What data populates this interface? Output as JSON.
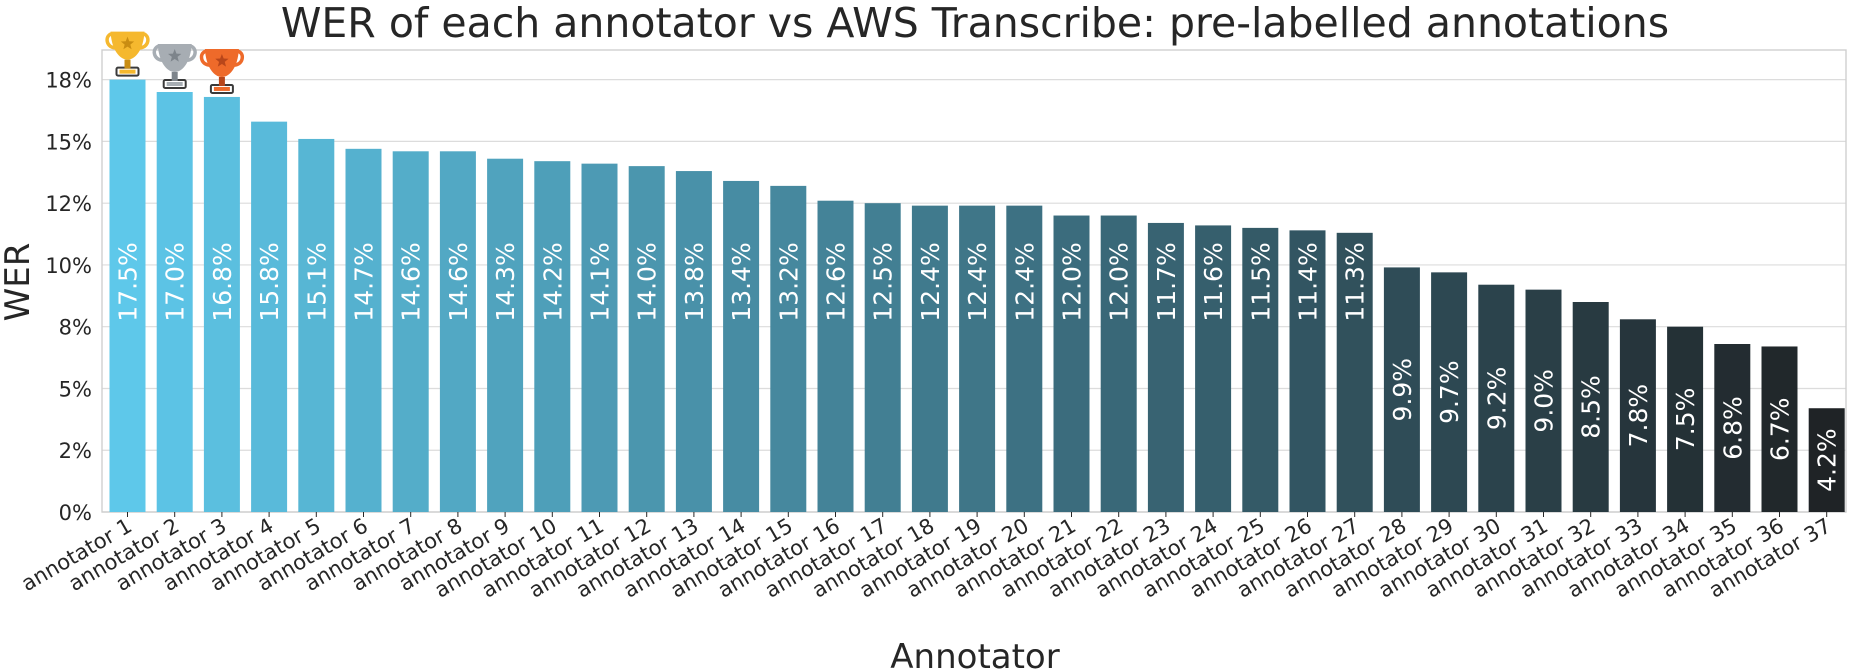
{
  "chart_data": {
    "type": "bar",
    "title": "WER of each annotator vs AWS Transcribe: pre-labelled annotations",
    "xlabel": "Annotator",
    "ylabel": "WER",
    "ylim": [
      0,
      18.7
    ],
    "yticks": [
      {
        "value": 0,
        "label": "0%"
      },
      {
        "value": 2.5,
        "label": "2%"
      },
      {
        "value": 5,
        "label": "5%"
      },
      {
        "value": 7.5,
        "label": "8%"
      },
      {
        "value": 10,
        "label": "10%"
      },
      {
        "value": 12.5,
        "label": "12%"
      },
      {
        "value": 15,
        "label": "15%"
      },
      {
        "value": 17.5,
        "label": "18%"
      }
    ],
    "grid": true,
    "categories": [
      "annotator 1",
      "annotator 2",
      "annotator 3",
      "annotator 4",
      "annotator 5",
      "annotator 6",
      "annotator 7",
      "annotator 8",
      "annotator 9",
      "annotator 10",
      "annotator 11",
      "annotator 12",
      "annotator 13",
      "annotator 14",
      "annotator 15",
      "annotator 16",
      "annotator 17",
      "annotator 18",
      "annotator 19",
      "annotator 20",
      "annotator 21",
      "annotator 22",
      "annotator 23",
      "annotator 24",
      "annotator 25",
      "annotator 26",
      "annotator 27",
      "annotator 28",
      "annotator 29",
      "annotator 30",
      "annotator 31",
      "annotator 32",
      "annotator 33",
      "annotator 34",
      "annotator 35",
      "annotator 36",
      "annotator 37"
    ],
    "values": [
      17.5,
      17.0,
      16.8,
      15.8,
      15.1,
      14.7,
      14.6,
      14.6,
      14.3,
      14.2,
      14.1,
      14.0,
      13.8,
      13.4,
      13.2,
      12.6,
      12.5,
      12.4,
      12.4,
      12.4,
      12.0,
      12.0,
      11.7,
      11.6,
      11.5,
      11.4,
      11.3,
      9.9,
      9.7,
      9.2,
      9.0,
      8.5,
      7.8,
      7.5,
      6.8,
      6.7,
      4.2
    ],
    "data_labels": [
      "17.5%",
      "17.0%",
      "16.8%",
      "15.8%",
      "15.1%",
      "14.7%",
      "14.6%",
      "14.6%",
      "14.3%",
      "14.2%",
      "14.1%",
      "14.0%",
      "13.8%",
      "13.4%",
      "13.2%",
      "12.6%",
      "12.5%",
      "12.4%",
      "12.4%",
      "12.4%",
      "12.0%",
      "12.0%",
      "11.7%",
      "11.6%",
      "11.5%",
      "11.4%",
      "11.3%",
      "9.9%",
      "9.7%",
      "9.2%",
      "9.0%",
      "8.5%",
      "7.8%",
      "7.5%",
      "6.8%",
      "6.7%",
      "4.2%"
    ],
    "color_start": "#5ec8ea",
    "color_end": "#1f2326",
    "trophies": [
      {
        "rank": 1,
        "icon": "gold-trophy-icon",
        "color": "#f5b82e",
        "star": "#c98d12"
      },
      {
        "rank": 2,
        "icon": "silver-trophy-icon",
        "color": "#a7adb3",
        "star": "#7d848b"
      },
      {
        "rank": 3,
        "icon": "bronze-trophy-icon",
        "color": "#ee6a2a",
        "star": "#b8461a"
      }
    ]
  }
}
